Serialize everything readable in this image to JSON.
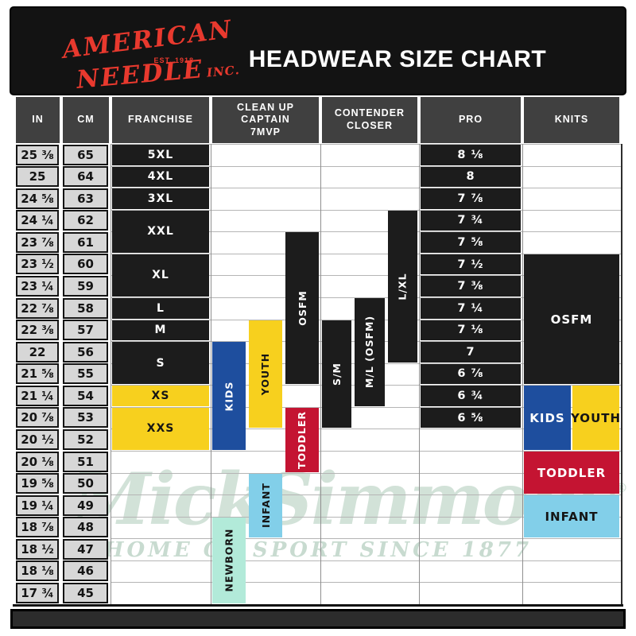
{
  "header": {
    "logo": {
      "line1": "AMERICAN",
      "est": "EST. 1918",
      "line2": "NEEDLE",
      "inc": "INC."
    },
    "title": "HEADWEAR SIZE CHART"
  },
  "watermark": {
    "line1": "MickSimmons",
    "reg": "®",
    "line2": "HOME OF SPORT SINCE 1877"
  },
  "colors": {
    "black": "#1c1c1c",
    "yellow": "#f7d01e",
    "blue": "#1e4e9e",
    "red": "#c41432",
    "lightblue": "#82cfe9",
    "teal": "#b2ead9",
    "logo_red": "#e8392e",
    "header_cell": "#404040",
    "measure_cell": "#d7d7d7"
  },
  "chart_data": {
    "type": "table",
    "title": "HEADWEAR SIZE CHART",
    "columns": [
      "IN",
      "CM",
      "FRANCHISE",
      "CLEAN UP\nCAPTAIN\n7MVP",
      "CONTENDER\nCLOSER",
      "PRO",
      "KNITS"
    ],
    "rows": [
      {
        "in": "25 ⅜",
        "cm": "65",
        "pro": "8 ⅛"
      },
      {
        "in": "25",
        "cm": "64",
        "pro": "8"
      },
      {
        "in": "24 ⅝",
        "cm": "63",
        "pro": "7 ⅞"
      },
      {
        "in": "24 ¼",
        "cm": "62",
        "pro": "7 ¾"
      },
      {
        "in": "23 ⅞",
        "cm": "61",
        "pro": "7 ⅝"
      },
      {
        "in": "23 ½",
        "cm": "60",
        "pro": "7 ½"
      },
      {
        "in": "23 ¼",
        "cm": "59",
        "pro": "7 ⅜"
      },
      {
        "in": "22 ⅞",
        "cm": "58",
        "pro": "7 ¼"
      },
      {
        "in": "22 ⅜",
        "cm": "57",
        "pro": "7 ⅛"
      },
      {
        "in": "22",
        "cm": "56",
        "pro": "7"
      },
      {
        "in": "21 ⅝",
        "cm": "55",
        "pro": "6 ⅞"
      },
      {
        "in": "21 ¼",
        "cm": "54",
        "pro": "6 ¾"
      },
      {
        "in": "20 ⅞",
        "cm": "53",
        "pro": "6 ⅝"
      },
      {
        "in": "20 ½",
        "cm": "52",
        "pro": null
      },
      {
        "in": "20 ⅛",
        "cm": "51",
        "pro": null
      },
      {
        "in": "19 ⅝",
        "cm": "50",
        "pro": null
      },
      {
        "in": "19 ¼",
        "cm": "49",
        "pro": null
      },
      {
        "in": "18 ⅞",
        "cm": "48",
        "pro": null
      },
      {
        "in": "18 ½",
        "cm": "47",
        "pro": null
      },
      {
        "in": "18 ⅛",
        "cm": "46",
        "pro": null
      },
      {
        "in": "17 ¾",
        "cm": "45",
        "pro": null
      }
    ],
    "size_ranges": [
      {
        "group": "franchise",
        "label": "5XL",
        "color": "black",
        "col": "fr",
        "from": 1,
        "to": 1,
        "dir": "h"
      },
      {
        "group": "franchise",
        "label": "4XL",
        "color": "black",
        "col": "fr",
        "from": 2,
        "to": 2,
        "dir": "h"
      },
      {
        "group": "franchise",
        "label": "3XL",
        "color": "black",
        "col": "fr",
        "from": 3,
        "to": 3,
        "dir": "h"
      },
      {
        "group": "franchise",
        "label": "XXL",
        "color": "black",
        "col": "fr",
        "from": 4,
        "to": 5,
        "dir": "h"
      },
      {
        "group": "franchise",
        "label": "XL",
        "color": "black",
        "col": "fr",
        "from": 6,
        "to": 7,
        "dir": "h"
      },
      {
        "group": "franchise",
        "label": "L",
        "color": "black",
        "col": "fr",
        "from": 8,
        "to": 8,
        "dir": "h"
      },
      {
        "group": "franchise",
        "label": "M",
        "color": "black",
        "col": "fr",
        "from": 9,
        "to": 9,
        "dir": "h"
      },
      {
        "group": "franchise",
        "label": "S",
        "color": "black",
        "col": "fr",
        "from": 10,
        "to": 11,
        "dir": "h"
      },
      {
        "group": "franchise",
        "label": "XS",
        "color": "yellow",
        "col": "fr",
        "from": 12,
        "to": 12,
        "dir": "h"
      },
      {
        "group": "franchise",
        "label": "XXS",
        "color": "yellow",
        "col": "fr",
        "from": 13,
        "to": 14,
        "dir": "h"
      },
      {
        "group": "cleanup",
        "label": "KIDS",
        "color": "blue",
        "col": "cu",
        "sub": 0,
        "from": 10,
        "to": 14,
        "dir": "v"
      },
      {
        "group": "cleanup",
        "label": "YOUTH",
        "color": "yellow",
        "col": "cu",
        "sub": 1,
        "from": 9,
        "to": 13,
        "dir": "v"
      },
      {
        "group": "cleanup",
        "label": "OSFM",
        "color": "black",
        "col": "cu",
        "sub": 2,
        "from": 5,
        "to": 11,
        "dir": "v"
      },
      {
        "group": "cleanup",
        "label": "TODDLER",
        "color": "red",
        "col": "cu",
        "sub": 2,
        "from": 13,
        "to": 15,
        "dir": "v"
      },
      {
        "group": "cleanup",
        "label": "INFANT",
        "color": "lightblue",
        "col": "cu",
        "sub": 1,
        "from": 16,
        "to": 18,
        "dir": "v"
      },
      {
        "group": "cleanup",
        "label": "NEWBORN",
        "color": "teal",
        "col": "cu",
        "sub": 0,
        "from": 18,
        "to": 21,
        "dir": "v"
      },
      {
        "group": "contender",
        "label": "S/M",
        "color": "black",
        "col": "cc",
        "sub": 0,
        "from": 9,
        "to": 13,
        "dir": "v"
      },
      {
        "group": "contender",
        "label": "M/L (OSFM)",
        "color": "black",
        "col": "cc",
        "sub": 1,
        "from": 8,
        "to": 12,
        "dir": "v"
      },
      {
        "group": "contender",
        "label": "L/XL",
        "color": "black",
        "col": "cc",
        "sub": 2,
        "from": 4,
        "to": 10,
        "dir": "v"
      },
      {
        "group": "knits",
        "label": "OSFM",
        "color": "black",
        "col": "kn",
        "span": "full",
        "from": 6,
        "to": 11,
        "dir": "h"
      },
      {
        "group": "knits",
        "label": "KIDS",
        "color": "blue",
        "col": "kn",
        "span": "left",
        "from": 12,
        "to": 14,
        "dir": "h"
      },
      {
        "group": "knits",
        "label": "YOUTH",
        "color": "yellow",
        "col": "kn",
        "span": "right",
        "from": 12,
        "to": 14,
        "dir": "h"
      },
      {
        "group": "knits",
        "label": "TODDLER",
        "color": "red",
        "col": "kn",
        "span": "full",
        "from": 15,
        "to": 16,
        "dir": "h"
      },
      {
        "group": "knits",
        "label": "INFANT",
        "color": "lightblue",
        "col": "kn",
        "span": "full",
        "from": 17,
        "to": 18,
        "dir": "h"
      }
    ]
  }
}
